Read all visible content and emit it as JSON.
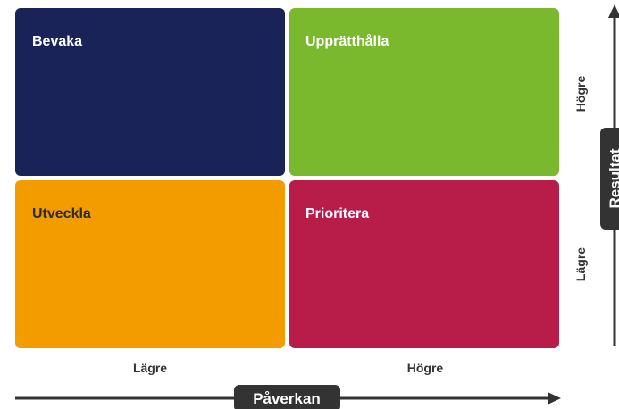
{
  "quadrants": [
    {
      "label": "Bevaka"
    },
    {
      "label": "Upprätthålla"
    },
    {
      "label": "Utveckla"
    },
    {
      "label": "Prioritera"
    }
  ],
  "x_axis": {
    "title": "Påverkan",
    "labels": [
      "Lägre",
      "Högre"
    ]
  },
  "y_axis": {
    "title": "Resultat",
    "labels": [
      "Högre",
      "Lägre"
    ]
  }
}
